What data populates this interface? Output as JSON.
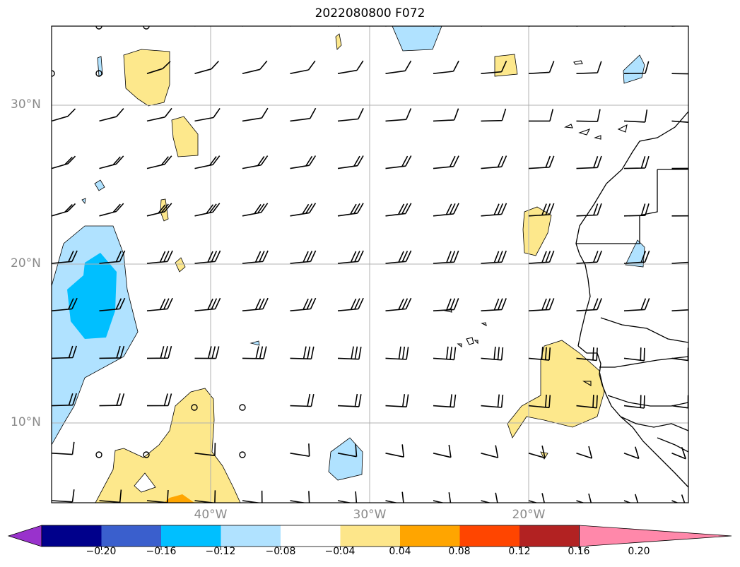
{
  "title": "2022080800 F072",
  "lat_labels": [
    "30°N",
    "20°N",
    "10°N"
  ],
  "lon_labels": [
    "40°W",
    "30°W",
    "20°W"
  ],
  "colorbar": {
    "ticks": [
      "−0.20",
      "−0.16",
      "−0.12",
      "−0.08",
      "−0.04",
      "0.04",
      "0.08",
      "0.12",
      "0.16",
      "0.20"
    ],
    "colors": [
      "#9932cc",
      "#00008b",
      "#3a5fcd",
      "#00bfff",
      "#b0e2ff",
      "#ffffff",
      "#fde68a",
      "#ffa500",
      "#ff4500",
      "#b22222",
      "#ff88aa"
    ]
  },
  "colors": {
    "pos_weak": "#fde88c",
    "pos_mid": "#ffa500",
    "neg_weak": "#b0e2ff",
    "neg_mid": "#00bfff",
    "grid": "#b0b0b0",
    "coast": "#000000"
  }
}
